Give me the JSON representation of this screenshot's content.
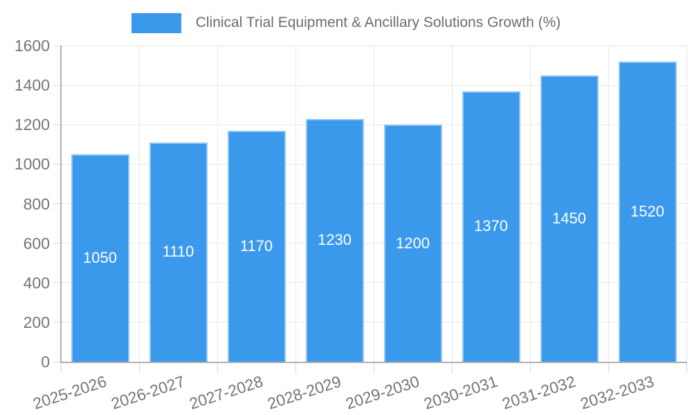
{
  "chart_data": {
    "type": "bar",
    "title": "Clinical Trial Equipment & Ancillary Solutions Growth (%)",
    "legend_position": "top",
    "categories": [
      "2025-2026",
      "2026-2027",
      "2027-2028",
      "2028-2029",
      "2029-2030",
      "2030-2031",
      "2031-2032",
      "2032-2033"
    ],
    "values": [
      1050,
      1110,
      1170,
      1230,
      1200,
      1370,
      1450,
      1520
    ],
    "bar_labels": [
      "1050",
      "1110",
      "1170",
      "1230",
      "1200",
      "1370",
      "1450",
      "1520"
    ],
    "ylim": [
      0,
      1600
    ],
    "yticks": [
      0,
      200,
      400,
      600,
      800,
      1000,
      1200,
      1400,
      1600
    ],
    "grid": true,
    "bar_label_position": "center",
    "x_label_rotation_deg": -18,
    "colors": {
      "bar": "#3b99ec",
      "grid": "#e7e7e7",
      "axis_line": "#b0b0b0",
      "tick_mark": "#d8d8d8",
      "axis_text": "#757575",
      "title_text": "#6c6c6c",
      "value_text": "#ffffff",
      "background": "#ffffff"
    }
  }
}
